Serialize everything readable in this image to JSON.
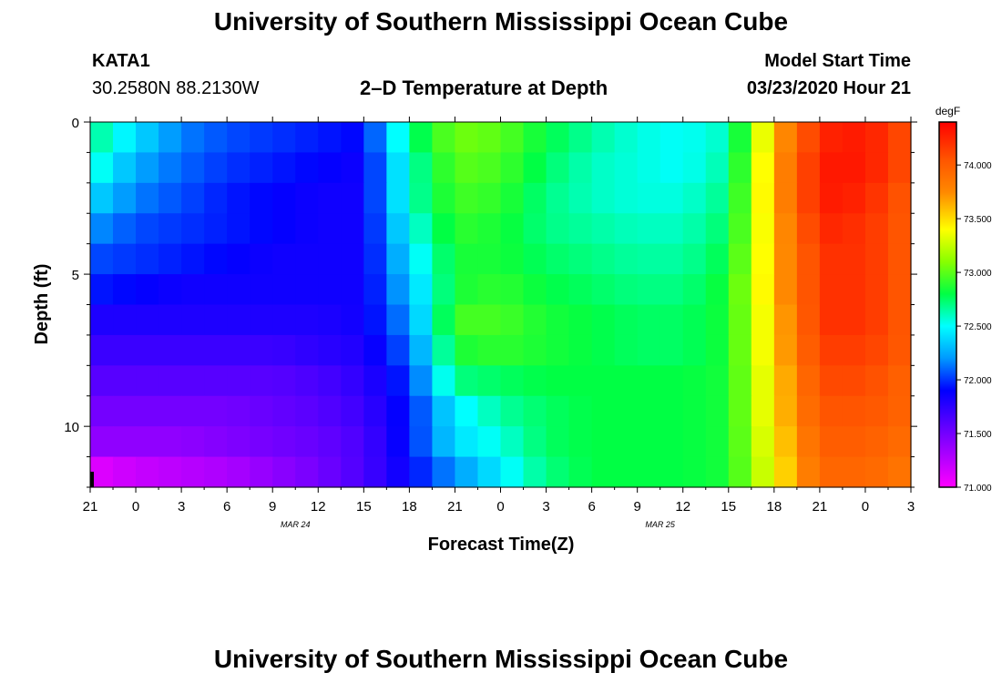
{
  "header": {
    "title": "University of Southern Mississippi Ocean Cube",
    "station_id": "KATA1",
    "coordinates": "30.2580N 88.2130W",
    "plot_title": "2–D Temperature at Depth",
    "model_start_label": "Model Start Time",
    "model_start_value": "03/23/2020 Hour 21"
  },
  "footer": {
    "title": "University of Southern Mississippi Ocean Cube"
  },
  "chart_data": {
    "type": "heatmap",
    "xlabel": "Forecast Time(Z)",
    "ylabel": "Depth (ft)",
    "x_ticks": [
      "21",
      "0",
      "3",
      "6",
      "9",
      "12",
      "15",
      "18",
      "21",
      "0",
      "3",
      "6",
      "9",
      "12",
      "15",
      "18",
      "21",
      "0",
      "3"
    ],
    "date_labels": [
      {
        "label": "MAR 24",
        "at_tick": 4.5
      },
      {
        "label": "MAR 25",
        "at_tick": 12.5
      }
    ],
    "x_range_hours": [
      0,
      54
    ],
    "y_ticks": [
      0,
      5,
      10
    ],
    "ylim": [
      0,
      12
    ],
    "y_inverted": true,
    "colorbar": {
      "unit": "degF",
      "min": 71.0,
      "max": 74.4,
      "ticks": [
        "71.000",
        "71.500",
        "72.000",
        "72.500",
        "73.000",
        "73.500",
        "74.000"
      ],
      "colors": [
        [
          71.0,
          "#ff00ff"
        ],
        [
          71.55,
          "#6600ff"
        ],
        [
          71.9,
          "#0000ff"
        ],
        [
          72.2,
          "#0099ff"
        ],
        [
          72.5,
          "#00ffff"
        ],
        [
          72.8,
          "#00ff44"
        ],
        [
          73.1,
          "#88ff00"
        ],
        [
          73.4,
          "#ffff00"
        ],
        [
          73.75,
          "#ff8800"
        ],
        [
          74.05,
          "#ff5500"
        ],
        [
          74.4,
          "#ff0000"
        ]
      ]
    },
    "depth_rows_ft": [
      0,
      1,
      2,
      3,
      4,
      5,
      6,
      7,
      8,
      9,
      10,
      11
    ],
    "times_hours": [
      0,
      3,
      6,
      9,
      12,
      15,
      18,
      21,
      24,
      27,
      30,
      33,
      36,
      39,
      42,
      45,
      48,
      51,
      54
    ],
    "temperature_degF": [
      [
        72.7,
        72.4,
        72.15,
        72.05,
        72.0,
        71.95,
        71.9,
        72.7,
        73.05,
        73.0,
        72.8,
        72.65,
        72.55,
        72.5,
        72.6,
        73.6,
        74.25,
        74.3,
        74.05
      ],
      [
        72.6,
        72.25,
        72.1,
        72.0,
        71.95,
        71.9,
        71.85,
        72.6,
        73.0,
        72.95,
        72.75,
        72.6,
        72.55,
        72.5,
        72.65,
        73.65,
        74.3,
        74.3,
        74.05
      ],
      [
        72.4,
        72.15,
        72.05,
        71.95,
        71.9,
        71.85,
        71.85,
        72.6,
        72.95,
        72.9,
        72.7,
        72.6,
        72.55,
        72.55,
        72.7,
        73.65,
        74.3,
        74.25,
        74.0
      ],
      [
        72.2,
        72.05,
        72.0,
        71.95,
        71.9,
        71.85,
        71.85,
        72.5,
        72.9,
        72.85,
        72.7,
        72.65,
        72.6,
        72.6,
        72.75,
        73.6,
        74.25,
        74.2,
        74.0
      ],
      [
        72.05,
        72.0,
        71.95,
        71.9,
        71.85,
        71.85,
        71.85,
        72.4,
        72.85,
        72.85,
        72.75,
        72.7,
        72.65,
        72.65,
        72.8,
        73.6,
        74.2,
        74.2,
        74.0
      ],
      [
        71.95,
        71.9,
        71.85,
        71.85,
        71.85,
        71.85,
        71.85,
        72.3,
        72.85,
        72.9,
        72.8,
        72.75,
        72.7,
        72.7,
        72.85,
        73.6,
        74.2,
        74.2,
        74.0
      ],
      [
        71.8,
        71.8,
        71.8,
        71.8,
        71.8,
        71.8,
        71.85,
        72.2,
        72.95,
        72.95,
        72.85,
        72.8,
        72.75,
        72.75,
        72.85,
        73.55,
        74.2,
        74.2,
        74.0
      ],
      [
        71.7,
        71.7,
        71.7,
        71.7,
        71.7,
        71.75,
        71.8,
        72.1,
        72.85,
        72.9,
        72.85,
        72.8,
        72.75,
        72.75,
        72.85,
        73.55,
        74.15,
        74.15,
        74.0
      ],
      [
        71.6,
        71.6,
        71.6,
        71.6,
        71.6,
        71.65,
        71.75,
        72.0,
        72.7,
        72.75,
        72.8,
        72.8,
        72.8,
        72.8,
        72.85,
        73.5,
        74.1,
        74.1,
        73.95
      ],
      [
        71.5,
        71.5,
        71.5,
        71.5,
        71.55,
        71.6,
        71.7,
        71.95,
        72.45,
        72.65,
        72.75,
        72.8,
        72.8,
        72.8,
        72.85,
        73.5,
        74.05,
        74.05,
        73.95
      ],
      [
        71.4,
        71.4,
        71.4,
        71.45,
        71.5,
        71.55,
        71.65,
        71.95,
        72.4,
        72.55,
        72.75,
        72.8,
        72.8,
        72.8,
        72.85,
        73.45,
        74.0,
        74.0,
        73.9
      ],
      [
        71.1,
        71.2,
        71.25,
        71.3,
        71.4,
        71.5,
        71.65,
        71.9,
        72.2,
        72.45,
        72.7,
        72.8,
        72.8,
        72.8,
        72.85,
        73.4,
        73.95,
        73.95,
        73.85
      ]
    ]
  }
}
